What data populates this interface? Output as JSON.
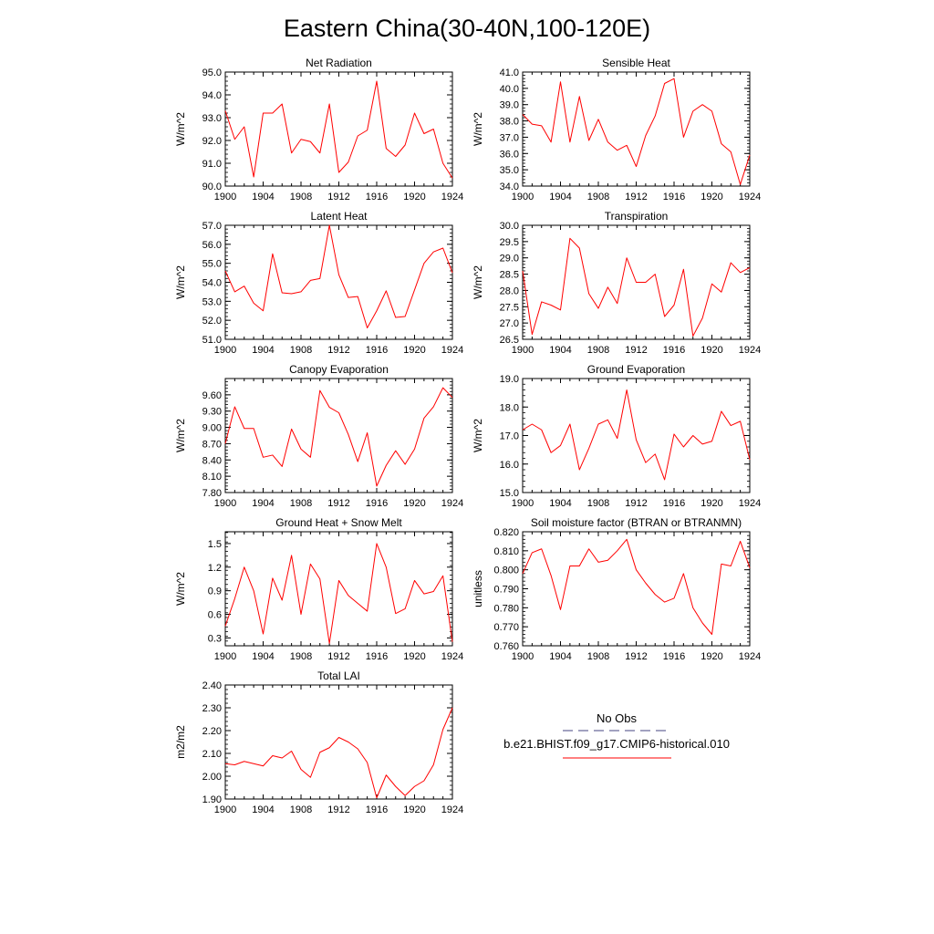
{
  "figure_title": "Eastern China(30-40N,100-120E)",
  "legend": {
    "obs_label": "No Obs",
    "model_label": "b.e21.BHIST.f09_g17.CMIP6-historical.010",
    "obs_color": "#6b6b9a",
    "model_color": "#ff0000"
  },
  "chart_data": [
    {
      "type": "line",
      "title": "Net Radiation",
      "ylabel": "W/m^2",
      "xlim": [
        1900,
        1924
      ],
      "ylim": [
        90.0,
        95.0
      ],
      "yticks": [
        "90.0",
        "91.0",
        "92.0",
        "93.0",
        "94.0",
        "95.0"
      ],
      "xticks": [
        "1900",
        "1904",
        "1908",
        "1912",
        "1916",
        "1920",
        "1924"
      ],
      "x": [
        1900,
        1901,
        1902,
        1903,
        1904,
        1905,
        1906,
        1907,
        1908,
        1909,
        1910,
        1911,
        1912,
        1913,
        1914,
        1915,
        1916,
        1917,
        1918,
        1919,
        1920,
        1921,
        1922,
        1923,
        1924
      ],
      "series": [
        {
          "color": "#ff0000",
          "values": [
            93.3,
            92.05,
            92.6,
            90.4,
            93.2,
            93.2,
            93.6,
            91.45,
            92.05,
            91.95,
            91.45,
            93.6,
            90.6,
            91.05,
            92.2,
            92.45,
            94.6,
            91.65,
            91.3,
            91.8,
            93.2,
            92.3,
            92.5,
            91.0,
            90.35
          ]
        }
      ]
    },
    {
      "type": "line",
      "title": "Sensible Heat",
      "ylabel": "W/m^2",
      "xlim": [
        1900,
        1924
      ],
      "ylim": [
        34.0,
        41.0
      ],
      "yticks": [
        "34.0",
        "35.0",
        "36.0",
        "37.0",
        "38.0",
        "39.0",
        "40.0",
        "41.0"
      ],
      "xticks": [
        "1900",
        "1904",
        "1908",
        "1912",
        "1916",
        "1920",
        "1924"
      ],
      "x": [
        1900,
        1901,
        1902,
        1903,
        1904,
        1905,
        1906,
        1907,
        1908,
        1909,
        1910,
        1911,
        1912,
        1913,
        1914,
        1915,
        1916,
        1917,
        1918,
        1919,
        1920,
        1921,
        1922,
        1923,
        1924
      ],
      "series": [
        {
          "color": "#ff0000",
          "values": [
            38.4,
            37.8,
            37.7,
            36.7,
            40.4,
            36.7,
            39.5,
            36.8,
            38.1,
            36.7,
            36.2,
            36.5,
            35.2,
            37.1,
            38.3,
            40.3,
            40.6,
            37.0,
            38.6,
            39.0,
            38.6,
            36.6,
            36.1,
            34.1,
            35.9
          ]
        }
      ]
    },
    {
      "type": "line",
      "title": "Latent Heat",
      "ylabel": "W/m^2",
      "xlim": [
        1900,
        1924
      ],
      "ylim": [
        51.0,
        57.0
      ],
      "yticks": [
        "51.0",
        "52.0",
        "53.0",
        "54.0",
        "55.0",
        "56.0",
        "57.0"
      ],
      "xticks": [
        "1900",
        "1904",
        "1908",
        "1912",
        "1916",
        "1920",
        "1924"
      ],
      "x": [
        1900,
        1901,
        1902,
        1903,
        1904,
        1905,
        1906,
        1907,
        1908,
        1909,
        1910,
        1911,
        1912,
        1913,
        1914,
        1915,
        1916,
        1917,
        1918,
        1919,
        1920,
        1921,
        1922,
        1923,
        1924
      ],
      "series": [
        {
          "color": "#ff0000",
          "values": [
            54.6,
            53.5,
            53.8,
            52.9,
            52.5,
            55.5,
            53.45,
            53.4,
            53.5,
            54.1,
            54.2,
            57.0,
            54.4,
            53.2,
            53.25,
            51.6,
            52.5,
            53.55,
            52.15,
            52.2,
            53.6,
            55.0,
            55.6,
            55.8,
            54.5
          ]
        }
      ]
    },
    {
      "type": "line",
      "title": "Transpiration",
      "ylabel": "W/m^2",
      "xlim": [
        1900,
        1924
      ],
      "ylim": [
        26.5,
        30.0
      ],
      "yticks": [
        "26.5",
        "27.0",
        "27.5",
        "28.0",
        "28.5",
        "29.0",
        "29.5",
        "30.0"
      ],
      "xticks": [
        "1900",
        "1904",
        "1908",
        "1912",
        "1916",
        "1920",
        "1924"
      ],
      "x": [
        1900,
        1901,
        1902,
        1903,
        1904,
        1905,
        1906,
        1907,
        1908,
        1909,
        1910,
        1911,
        1912,
        1913,
        1914,
        1915,
        1916,
        1917,
        1918,
        1919,
        1920,
        1921,
        1922,
        1923,
        1924
      ],
      "series": [
        {
          "color": "#ff0000",
          "values": [
            28.6,
            26.65,
            27.65,
            27.55,
            27.4,
            29.6,
            29.3,
            27.9,
            27.45,
            28.1,
            27.6,
            29.0,
            28.25,
            28.25,
            28.5,
            27.2,
            27.55,
            28.65,
            26.6,
            27.15,
            28.2,
            27.95,
            28.85,
            28.55,
            28.7
          ]
        }
      ]
    },
    {
      "type": "line",
      "title": "Canopy Evaporation",
      "ylabel": "W/m^2",
      "xlim": [
        1900,
        1924
      ],
      "ylim": [
        7.8,
        9.9
      ],
      "yticks": [
        "7.80",
        "8.10",
        "8.40",
        "8.70",
        "9.00",
        "9.30",
        "9.60"
      ],
      "xticks": [
        "1900",
        "1904",
        "1908",
        "1912",
        "1916",
        "1920",
        "1924"
      ],
      "x": [
        1900,
        1901,
        1902,
        1903,
        1904,
        1905,
        1906,
        1907,
        1908,
        1909,
        1910,
        1911,
        1912,
        1913,
        1914,
        1915,
        1916,
        1917,
        1918,
        1919,
        1920,
        1921,
        1922,
        1923,
        1924
      ],
      "series": [
        {
          "color": "#ff0000",
          "values": [
            8.7,
            9.38,
            8.98,
            8.98,
            8.45,
            8.49,
            8.28,
            8.97,
            8.6,
            8.45,
            9.68,
            9.37,
            9.27,
            8.87,
            8.37,
            8.9,
            7.92,
            8.3,
            8.57,
            8.32,
            8.6,
            9.17,
            9.38,
            9.73,
            9.55
          ]
        }
      ]
    },
    {
      "type": "line",
      "title": "Ground Evaporation",
      "ylabel": "W/m^2",
      "xlim": [
        1900,
        1924
      ],
      "ylim": [
        15.0,
        19.0
      ],
      "yticks": [
        "15.0",
        "16.0",
        "17.0",
        "18.0",
        "19.0"
      ],
      "xticks": [
        "1900",
        "1904",
        "1908",
        "1912",
        "1916",
        "1920",
        "1924"
      ],
      "x": [
        1900,
        1901,
        1902,
        1903,
        1904,
        1905,
        1906,
        1907,
        1908,
        1909,
        1910,
        1911,
        1912,
        1913,
        1914,
        1915,
        1916,
        1917,
        1918,
        1919,
        1920,
        1921,
        1922,
        1923,
        1924
      ],
      "series": [
        {
          "color": "#ff0000",
          "values": [
            17.2,
            17.4,
            17.2,
            16.4,
            16.65,
            17.4,
            15.8,
            16.55,
            17.4,
            17.55,
            16.9,
            18.6,
            16.85,
            16.05,
            16.35,
            15.45,
            17.05,
            16.6,
            17.0,
            16.7,
            16.8,
            17.85,
            17.35,
            17.5,
            16.15
          ]
        }
      ]
    },
    {
      "type": "line",
      "title": "Ground Heat + Snow Melt",
      "ylabel": "W/m^2",
      "xlim": [
        1900,
        1924
      ],
      "ylim": [
        0.2,
        1.65
      ],
      "yticks": [
        "0.3",
        "0.6",
        "0.9",
        "1.2",
        "1.5"
      ],
      "xticks": [
        "1900",
        "1904",
        "1908",
        "1912",
        "1916",
        "1920",
        "1924"
      ],
      "x": [
        1900,
        1901,
        1902,
        1903,
        1904,
        1905,
        1906,
        1907,
        1908,
        1909,
        1910,
        1911,
        1912,
        1913,
        1914,
        1915,
        1916,
        1917,
        1918,
        1919,
        1920,
        1921,
        1922,
        1923,
        1924
      ],
      "series": [
        {
          "color": "#ff0000",
          "values": [
            0.45,
            0.8,
            1.2,
            0.9,
            0.35,
            1.06,
            0.78,
            1.35,
            0.6,
            1.24,
            1.05,
            0.23,
            1.03,
            0.84,
            0.74,
            0.64,
            1.5,
            1.2,
            0.61,
            0.67,
            1.03,
            0.86,
            0.89,
            1.09,
            0.25
          ]
        }
      ]
    },
    {
      "type": "line",
      "title": "Soil moisture factor (BTRAN or BTRANMN)",
      "ylabel": "unitless",
      "xlim": [
        1900,
        1924
      ],
      "ylim": [
        0.76,
        0.82
      ],
      "yticks": [
        "0.760",
        "0.770",
        "0.780",
        "0.790",
        "0.800",
        "0.810",
        "0.820"
      ],
      "xticks": [
        "1900",
        "1904",
        "1908",
        "1912",
        "1916",
        "1920",
        "1924"
      ],
      "x": [
        1900,
        1901,
        1902,
        1903,
        1904,
        1905,
        1906,
        1907,
        1908,
        1909,
        1910,
        1911,
        1912,
        1913,
        1914,
        1915,
        1916,
        1917,
        1918,
        1919,
        1920,
        1921,
        1922,
        1923,
        1924
      ],
      "series": [
        {
          "color": "#ff0000",
          "values": [
            0.798,
            0.809,
            0.811,
            0.797,
            0.779,
            0.802,
            0.802,
            0.811,
            0.804,
            0.805,
            0.81,
            0.816,
            0.8,
            0.793,
            0.787,
            0.783,
            0.785,
            0.798,
            0.78,
            0.772,
            0.766,
            0.803,
            0.802,
            0.815,
            0.801
          ]
        }
      ]
    },
    {
      "type": "line",
      "title": "Total LAI",
      "ylabel": "m2/m2",
      "xlim": [
        1900,
        1924
      ],
      "ylim": [
        1.9,
        2.4
      ],
      "yticks": [
        "1.90",
        "2.00",
        "2.10",
        "2.20",
        "2.30",
        "2.40"
      ],
      "xticks": [
        "1900",
        "1904",
        "1908",
        "1912",
        "1916",
        "1920",
        "1924"
      ],
      "x": [
        1900,
        1901,
        1902,
        1903,
        1904,
        1905,
        1906,
        1907,
        1908,
        1909,
        1910,
        1911,
        1912,
        1913,
        1914,
        1915,
        1916,
        1917,
        1918,
        1919,
        1920,
        1921,
        1922,
        1923,
        1924
      ],
      "series": [
        {
          "color": "#ff0000",
          "values": [
            2.055,
            2.05,
            2.065,
            2.055,
            2.045,
            2.09,
            2.08,
            2.11,
            2.03,
            1.995,
            2.105,
            2.125,
            2.17,
            2.15,
            2.12,
            2.06,
            1.905,
            2.005,
            1.955,
            1.915,
            1.955,
            1.98,
            2.05,
            2.205,
            2.3
          ]
        }
      ]
    }
  ]
}
